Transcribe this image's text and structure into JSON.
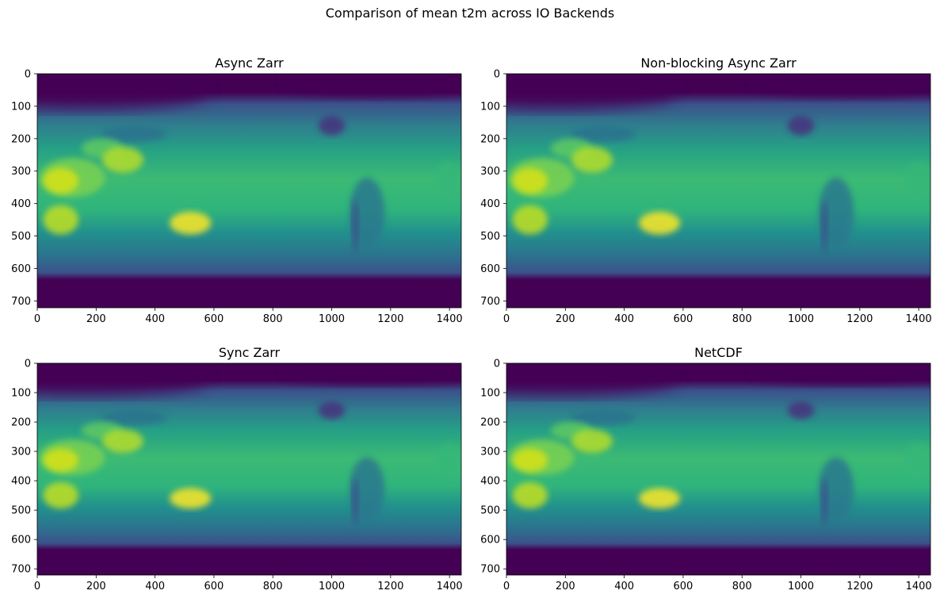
{
  "figure": {
    "suptitle": "Comparison of mean t2m across IO Backends"
  },
  "chart_data": [
    {
      "type": "heatmap",
      "title": "Async Zarr",
      "xlabel": "",
      "ylabel": "",
      "xlim": [
        0,
        1440
      ],
      "ylim": [
        721,
        0
      ],
      "xticks": [
        0,
        200,
        400,
        600,
        800,
        1000,
        1200,
        1400
      ],
      "yticks": [
        0,
        100,
        200,
        300,
        400,
        500,
        600,
        700
      ],
      "colormap": "viridis",
      "grid": false
    },
    {
      "type": "heatmap",
      "title": "Non-blocking Async Zarr",
      "xlabel": "",
      "ylabel": "",
      "xlim": [
        0,
        1440
      ],
      "ylim": [
        721,
        0
      ],
      "xticks": [
        0,
        200,
        400,
        600,
        800,
        1000,
        1200,
        1400
      ],
      "yticks": [
        0,
        100,
        200,
        300,
        400,
        500,
        600,
        700
      ],
      "colormap": "viridis",
      "grid": false
    },
    {
      "type": "heatmap",
      "title": "Sync Zarr",
      "xlabel": "",
      "ylabel": "",
      "xlim": [
        0,
        1440
      ],
      "ylim": [
        721,
        0
      ],
      "xticks": [
        0,
        200,
        400,
        600,
        800,
        1000,
        1200,
        1400
      ],
      "yticks": [
        0,
        100,
        200,
        300,
        400,
        500,
        600,
        700
      ],
      "colormap": "viridis",
      "grid": false
    },
    {
      "type": "heatmap",
      "title": "NetCDF",
      "xlabel": "",
      "ylabel": "",
      "xlim": [
        0,
        1440
      ],
      "ylim": [
        721,
        0
      ],
      "xticks": [
        0,
        200,
        400,
        600,
        800,
        1000,
        1200,
        1400
      ],
      "yticks": [
        0,
        100,
        200,
        300,
        400,
        500,
        600,
        700
      ],
      "colormap": "viridis",
      "grid": false
    }
  ]
}
